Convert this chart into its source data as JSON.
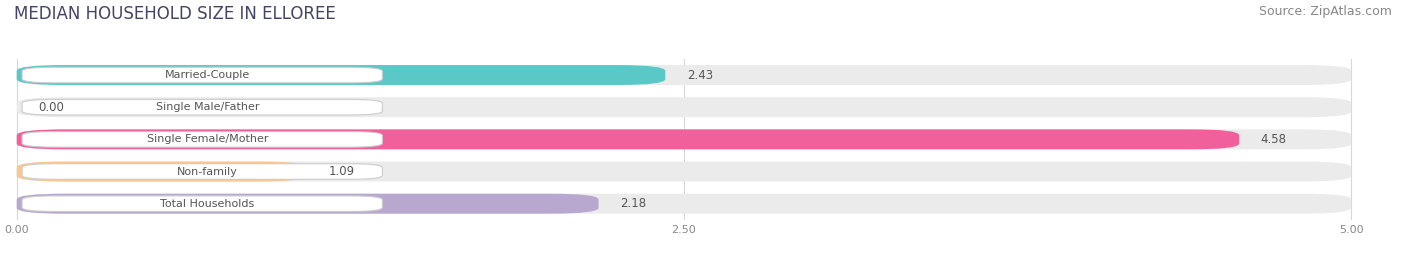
{
  "title": "MEDIAN HOUSEHOLD SIZE IN ELLOREE",
  "source": "Source: ZipAtlas.com",
  "categories": [
    "Married-Couple",
    "Single Male/Father",
    "Single Female/Mother",
    "Non-family",
    "Total Households"
  ],
  "values": [
    2.43,
    0.0,
    4.58,
    1.09,
    2.18
  ],
  "bar_colors": [
    "#5bc8c8",
    "#a8b8e8",
    "#f0609a",
    "#f5c894",
    "#b8a8d0"
  ],
  "bar_bg_color": "#ebebeb",
  "xlim_data": [
    0.0,
    5.0
  ],
  "xticks": [
    0.0,
    2.5,
    5.0
  ],
  "xtick_labels": [
    "0.00",
    "2.50",
    "5.00"
  ],
  "title_fontsize": 12,
  "source_fontsize": 9,
  "label_fontsize": 8,
  "value_fontsize": 8.5,
  "background_color": "#ffffff",
  "grid_color": "#d8d8d8",
  "label_box_color": "#ffffff",
  "text_color": "#555555"
}
